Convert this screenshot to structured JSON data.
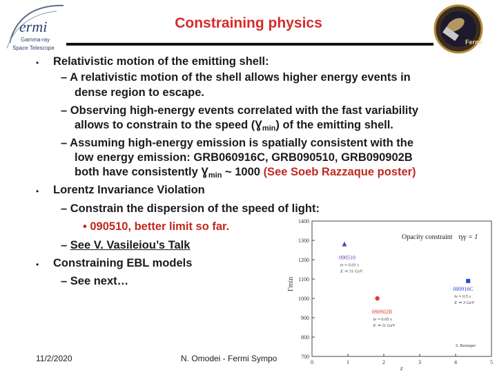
{
  "header": {
    "title": "Constraining physics",
    "logo_left": {
      "brand": "ermi",
      "line1": "Gamma-ray",
      "line2": "Space Telescope"
    },
    "logo_right": {
      "text": "Fermi"
    }
  },
  "body": {
    "b1": "Relativistic motion of the emitting shell:",
    "b1_s1_l1": "– A relativistic motion of the shell allows higher energy events in",
    "b1_s1_l2": "dense region to escape.",
    "b1_s2_l1": "– Observing high-energy events correlated with the fast variability",
    "b1_s2_l2a": "allows to constrain to the speed (",
    "gamma_sym": "Ɣ",
    "min_sub": "min",
    "b1_s2_l2b": ") of the emitting shell.",
    "b1_s3_l1": "– Assuming high-energy emission is spatially consistent with the",
    "b1_s3_l2": "low energy emission: GRB060916C, GRB090510, GRB090902B",
    "b1_s3_l3a": "both have consistently ",
    "b1_s3_l3b": " ~ 1000 ",
    "b1_s3_l3c": "(See Soeb Razzaque poster)",
    "b2": "Lorentz Invariance Violation",
    "b2_s1": "– Constrain the dispersion of the speed of light:",
    "b2_s1_b1": "• 090510, better limit so far.",
    "b2_s2_dash": "– ",
    "b2_s2": "See V. Vasileiou’s Talk",
    "b3": "Constraining EBL models",
    "b3_s1": "– See next…",
    "bullet": "•"
  },
  "footer": {
    "date": "11/2/2020",
    "text": "N. Omodei - Fermi Sympo"
  },
  "chart_data": {
    "type": "scatter",
    "title": "Opacity constraint",
    "title_formula": "τγγ = 1",
    "ylabel": "Γmin",
    "xlabel": "z",
    "xlim": [
      0,
      5
    ],
    "ylim": [
      700,
      1400
    ],
    "yticks": [
      "700",
      "800",
      "900",
      "1000",
      "1100",
      "1200",
      "1300",
      "1400"
    ],
    "xticks": [
      "0",
      "1",
      "2",
      "3",
      "4",
      "5"
    ],
    "credit": "S. Razzaque",
    "points": [
      {
        "name": "090510",
        "x": 0.903,
        "y": 1280,
        "marker": "triangle",
        "color": "#6a3bb5",
        "details": [
          "tv ≈ 0.01 s",
          "E ≃ 31 GeV"
        ]
      },
      {
        "name": "080916C",
        "x": 4.35,
        "y": 1090,
        "marker": "square",
        "color": "#2a47d6",
        "details": [
          "tv ≈ 0.5 s",
          "E ≃ 3 GeV"
        ]
      },
      {
        "name": "090902B",
        "x": 1.82,
        "y": 1000,
        "marker": "circle",
        "color": "#e8362b",
        "details": [
          "tv ≈ 0.05 s",
          "E ≃ 11 GeV"
        ]
      }
    ]
  }
}
